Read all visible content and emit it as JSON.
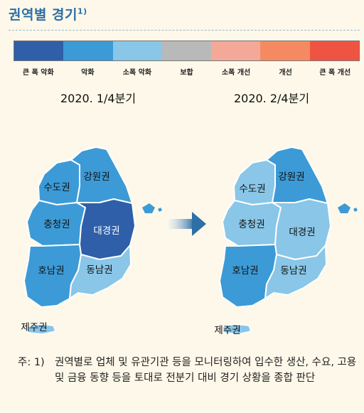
{
  "title": "권역별 경기",
  "title_sup": "1)",
  "legend": [
    {
      "label": "큰 폭 악화",
      "color": "#2e5fa8"
    },
    {
      "label": "악화",
      "color": "#3c9ad6"
    },
    {
      "label": "소폭 악화",
      "color": "#89c6e8"
    },
    {
      "label": "보합",
      "color": "#b9b9b9"
    },
    {
      "label": "소폭 개선",
      "color": "#f4a898"
    },
    {
      "label": "개선",
      "color": "#f58a62"
    },
    {
      "label": "큰 폭 개선",
      "color": "#ef5442"
    }
  ],
  "maps": [
    {
      "period": "2020. 1/4분기",
      "regions": {
        "sudo": {
          "label": "수도권",
          "color": "#3c9ad6"
        },
        "gangwon": {
          "label": "강원권",
          "color": "#3c9ad6"
        },
        "chungcheong": {
          "label": "충청권",
          "color": "#3c9ad6"
        },
        "daegyeong": {
          "label": "대경권",
          "color": "#2e5fa8"
        },
        "honam": {
          "label": "호남권",
          "color": "#3c9ad6"
        },
        "dongnam": {
          "label": "동남권",
          "color": "#89c6e8"
        },
        "jeju": {
          "label": "제주권",
          "color": "#89c6e8"
        }
      }
    },
    {
      "period": "2020. 2/4분기",
      "regions": {
        "sudo": {
          "label": "수도권",
          "color": "#89c6e8"
        },
        "gangwon": {
          "label": "강원권",
          "color": "#3c9ad6"
        },
        "chungcheong": {
          "label": "충청권",
          "color": "#89c6e8"
        },
        "daegyeong": {
          "label": "대경권",
          "color": "#89c6e8"
        },
        "honam": {
          "label": "호남권",
          "color": "#3c9ad6"
        },
        "dongnam": {
          "label": "동남권",
          "color": "#89c6e8"
        },
        "jeju": {
          "label": "제주권",
          "color": "#89c6e8"
        }
      }
    }
  ],
  "note": {
    "prefix": "주: 1)",
    "text": "권역별로 업체 및 유관기관 등을 모니터링하여 입수한 생산, 수요, 고용 및 금융 동향 등을 토대로 전분기 대비 경기 상황을 종합 판단"
  }
}
